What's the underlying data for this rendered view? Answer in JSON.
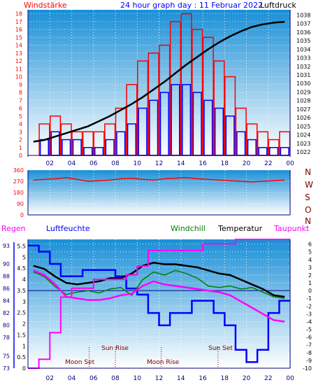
{
  "title": "24 hour graph day : 11 Februar 2022",
  "colors": {
    "red": "#ff0000",
    "blue": "#0000ff",
    "black": "#000000",
    "green": "#008000",
    "magenta": "#ff00ff",
    "navy": "#000080",
    "darkred": "#800000",
    "bg_top": "#1a8fd6",
    "bg_bottom": "#ffffff"
  },
  "x_ticks": [
    "02",
    "04",
    "06",
    "08",
    "10",
    "12",
    "14",
    "16",
    "18",
    "20",
    "22",
    "00"
  ],
  "chart_data": [
    {
      "type": "bar",
      "left_label": "Windstärke",
      "right_label": "Luftdruck",
      "left_ticks": [
        "0",
        "1",
        "2",
        "3",
        "4",
        "5",
        "6",
        "7",
        "8",
        "9",
        "10",
        "11",
        "12",
        "13",
        "14",
        "15",
        "16",
        "17",
        "18"
      ],
      "right_ticks": [
        "1022",
        "1023",
        "1024",
        "1025",
        "1026",
        "1027",
        "1028",
        "1029",
        "1030",
        "1031",
        "1032",
        "1033",
        "1034",
        "1035",
        "1036",
        "1037",
        "1038"
      ],
      "ylim_left": [
        0,
        18.5
      ],
      "ylim_right": [
        1021.6,
        1038.6
      ],
      "x": [
        0,
        1,
        2,
        3,
        4,
        5,
        6,
        7,
        8,
        9,
        10,
        11,
        12,
        13,
        14,
        15,
        16,
        17,
        18,
        19,
        20,
        21,
        22,
        23
      ],
      "series": [
        {
          "name": "gust",
          "color": "red",
          "values": [
            0,
            4,
            5,
            4,
            3,
            3,
            3,
            4,
            6,
            9,
            12,
            13,
            14,
            17,
            18,
            16,
            15,
            12,
            10,
            6,
            4,
            3,
            2,
            3
          ]
        },
        {
          "name": "wind",
          "color": "blue",
          "values": [
            0,
            2,
            3,
            2,
            2,
            1,
            1,
            2,
            3,
            4,
            6,
            7,
            8,
            9,
            9,
            8,
            7,
            6,
            5,
            3,
            2,
            1,
            1,
            1
          ]
        },
        {
          "name": "pressure",
          "color": "black",
          "type": "line",
          "values": [
            1023.2,
            1023.4,
            1023.8,
            1024.2,
            1024.6,
            1025.0,
            1025.6,
            1026.2,
            1026.9,
            1027.6,
            1028.4,
            1029.3,
            1030.2,
            1031.2,
            1032.2,
            1033.1,
            1034.0,
            1034.8,
            1035.5,
            1036.1,
            1036.6,
            1036.9,
            1037.1,
            1037.2
          ]
        }
      ]
    },
    {
      "type": "line",
      "left_ticks": [
        "0",
        "90",
        "180",
        "270",
        "360"
      ],
      "right_letters": [
        "N",
        "W",
        "S",
        "O",
        "N"
      ],
      "ylim": [
        0,
        360
      ],
      "x": [
        0,
        1,
        2,
        3,
        4,
        5,
        6,
        7,
        8,
        9,
        10,
        11,
        12,
        13,
        14,
        15,
        16,
        17,
        18,
        19,
        20,
        21,
        22,
        23
      ],
      "series": [
        {
          "name": "direction",
          "color": "red",
          "values": [
            280,
            285,
            290,
            300,
            285,
            270,
            275,
            280,
            290,
            295,
            285,
            280,
            290,
            295,
            300,
            290,
            285,
            280,
            275,
            270,
            265,
            270,
            275,
            280
          ]
        }
      ]
    },
    {
      "type": "line",
      "labels": {
        "regen": "Regen",
        "luftfeuchte": "Luftfeuchte",
        "windchill": "Windchill",
        "temperatur": "Temperatur",
        "taupunkt": "Taupunkt"
      },
      "left_outer_ticks": [
        "73",
        "75",
        "78",
        "80",
        "82",
        "84",
        "86",
        "88",
        "90",
        "93"
      ],
      "left_inner_ticks": [
        "0",
        "0.5",
        "1",
        "1.5",
        "2",
        "2.5",
        "3",
        "3.5",
        "4",
        "4.5",
        "5",
        "5.5"
      ],
      "right_ticks": [
        "6",
        "5",
        "4",
        "3",
        "2",
        "1",
        "0",
        "-1",
        "-2",
        "-3",
        "-4",
        "-5",
        "-6",
        "-7",
        "-8",
        "-9",
        "-10"
      ],
      "ylim_temp": [
        -10,
        6.6
      ],
      "ylim_humidity": [
        73,
        94
      ],
      "ylim_rain": [
        0,
        5.8
      ],
      "x": [
        0,
        1,
        2,
        3,
        4,
        5,
        6,
        7,
        8,
        9,
        10,
        11,
        12,
        13,
        14,
        15,
        16,
        17,
        18,
        19,
        20,
        21,
        22,
        23
      ],
      "series": [
        {
          "name": "Luftfeuchte",
          "color": "blue",
          "values": [
            93,
            92,
            90,
            88,
            88,
            89,
            89,
            89,
            88,
            86,
            85,
            82,
            80,
            82,
            82,
            84,
            84,
            82,
            80,
            76,
            74,
            76,
            82,
            84
          ]
        },
        {
          "name": "Temperatur",
          "color": "black",
          "values": [
            3.2,
            2.8,
            1.8,
            1.0,
            0.8,
            1.0,
            1.2,
            1.6,
            1.6,
            2.2,
            3.2,
            3.6,
            3.4,
            3.4,
            3.2,
            3.0,
            2.6,
            2.2,
            2.0,
            1.4,
            0.8,
            0.2,
            -0.6,
            -0.8
          ]
        },
        {
          "name": "Windchill",
          "color": "green",
          "values": [
            2.4,
            1.8,
            0.5,
            -0.5,
            -0.2,
            0.0,
            -0.3,
            0.2,
            0.4,
            -0.6,
            1.4,
            2.4,
            2.0,
            2.6,
            2.2,
            1.6,
            0.6,
            0.4,
            0.6,
            0.2,
            0.4,
            -0.2,
            -0.8,
            -1.0
          ]
        },
        {
          "name": "Taupunkt",
          "color": "magenta",
          "values": [
            2.6,
            2.0,
            0.8,
            -0.8,
            -1.0,
            -1.2,
            -1.2,
            -1.0,
            -0.6,
            -0.4,
            0.6,
            1.2,
            0.8,
            0.6,
            0.4,
            0.2,
            0.0,
            -0.2,
            -0.6,
            -1.4,
            -2.2,
            -3.0,
            -3.8,
            -4.0
          ]
        },
        {
          "name": "Regen",
          "color": "magenta",
          "values": [
            0,
            0.4,
            1.6,
            3.2,
            3.6,
            3.6,
            4.0,
            4.0,
            4.0,
            4.2,
            4.6,
            5.3,
            5.3,
            5.3,
            5.3,
            5.3,
            5.6,
            5.6,
            5.6,
            5.8,
            5.8,
            5.8,
            5.8,
            5.8
          ]
        }
      ],
      "events": [
        {
          "text": "Moon Set",
          "row": 2,
          "hour": 5.6
        },
        {
          "text": "Sun Rise",
          "row": 1,
          "hour": 8.0
        },
        {
          "text": "Moon Rise",
          "row": 2,
          "hour": 12.2
        },
        {
          "text": "Sun Set",
          "row": 1,
          "hour": 17.4
        }
      ]
    }
  ]
}
